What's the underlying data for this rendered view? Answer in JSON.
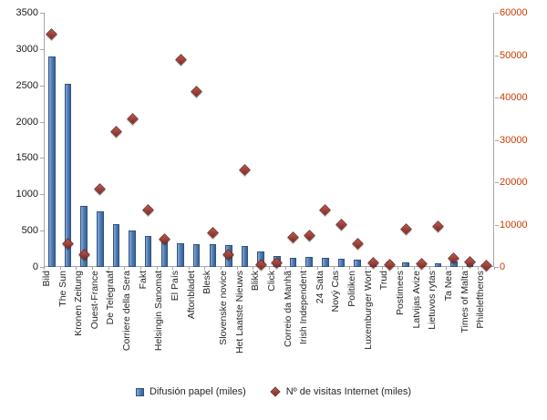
{
  "chart_data": {
    "type": "bar",
    "subtype": "combo-bar-with-scatter-diamonds",
    "title": "",
    "xlabel": "",
    "ylabel_left": "",
    "ylabel_right": "",
    "grid": false,
    "legend_position": "bottom",
    "categories": [
      "Bild",
      "The Sun",
      "Kronen Zeitung",
      "Ouest-France",
      "De Telegraaf",
      "Corriere della Sera",
      "Fakt",
      "Helsingin Sanomat",
      "El País",
      "Aftonbladet",
      "Blesk",
      "Slovenske novice",
      "Het Laatste Nieuws",
      "Blikk",
      "Click",
      "Correio da Manhã",
      "Irish Independent",
      "24 Sata",
      "Nový Cas",
      "Politiken",
      "Luxemburger Wort",
      "Trud",
      "Postimees",
      "Latvijas Avize",
      "Lietuvos rytas",
      "Ta Nea",
      "Times of Malta",
      "Phileleftheros"
    ],
    "series": [
      {
        "name": "Difusión papel (miles)",
        "type": "bar",
        "axis": "left",
        "values": [
          2900,
          2520,
          840,
          760,
          590,
          500,
          430,
          390,
          330,
          320,
          310,
          300,
          290,
          220,
          150,
          130,
          140,
          120,
          110,
          100,
          85,
          75,
          60,
          55,
          55,
          75,
          40,
          25
        ]
      },
      {
        "name": "Nº de visitas Internet (miles)",
        "type": "scatter-diamond",
        "axis": "right",
        "values": [
          55000,
          5500,
          3000,
          18500,
          32000,
          35000,
          13500,
          6500,
          49000,
          41500,
          8000,
          3000,
          23000,
          500,
          1000,
          7000,
          7500,
          13500,
          10000,
          5500,
          1000,
          600,
          9000,
          700,
          9500,
          2000,
          1200,
          400
        ]
      }
    ],
    "left_axis": {
      "min": 0,
      "max": 3500,
      "ticks": [
        0,
        500,
        1000,
        1500,
        2000,
        2500,
        3000,
        3500
      ]
    },
    "right_axis": {
      "min": 0,
      "max": 60000,
      "ticks": [
        0,
        10000,
        20000,
        30000,
        40000,
        50000,
        60000
      ]
    },
    "colors": {
      "bar": "#4f81bd",
      "bar_light": "#8fa9d2",
      "bar_dark": "#3a6191",
      "diamond": "#9e4038",
      "diamond_dark": "#732a24",
      "right_axis_text": "#cc3a00",
      "axis_line": "#a6a6a6"
    }
  }
}
